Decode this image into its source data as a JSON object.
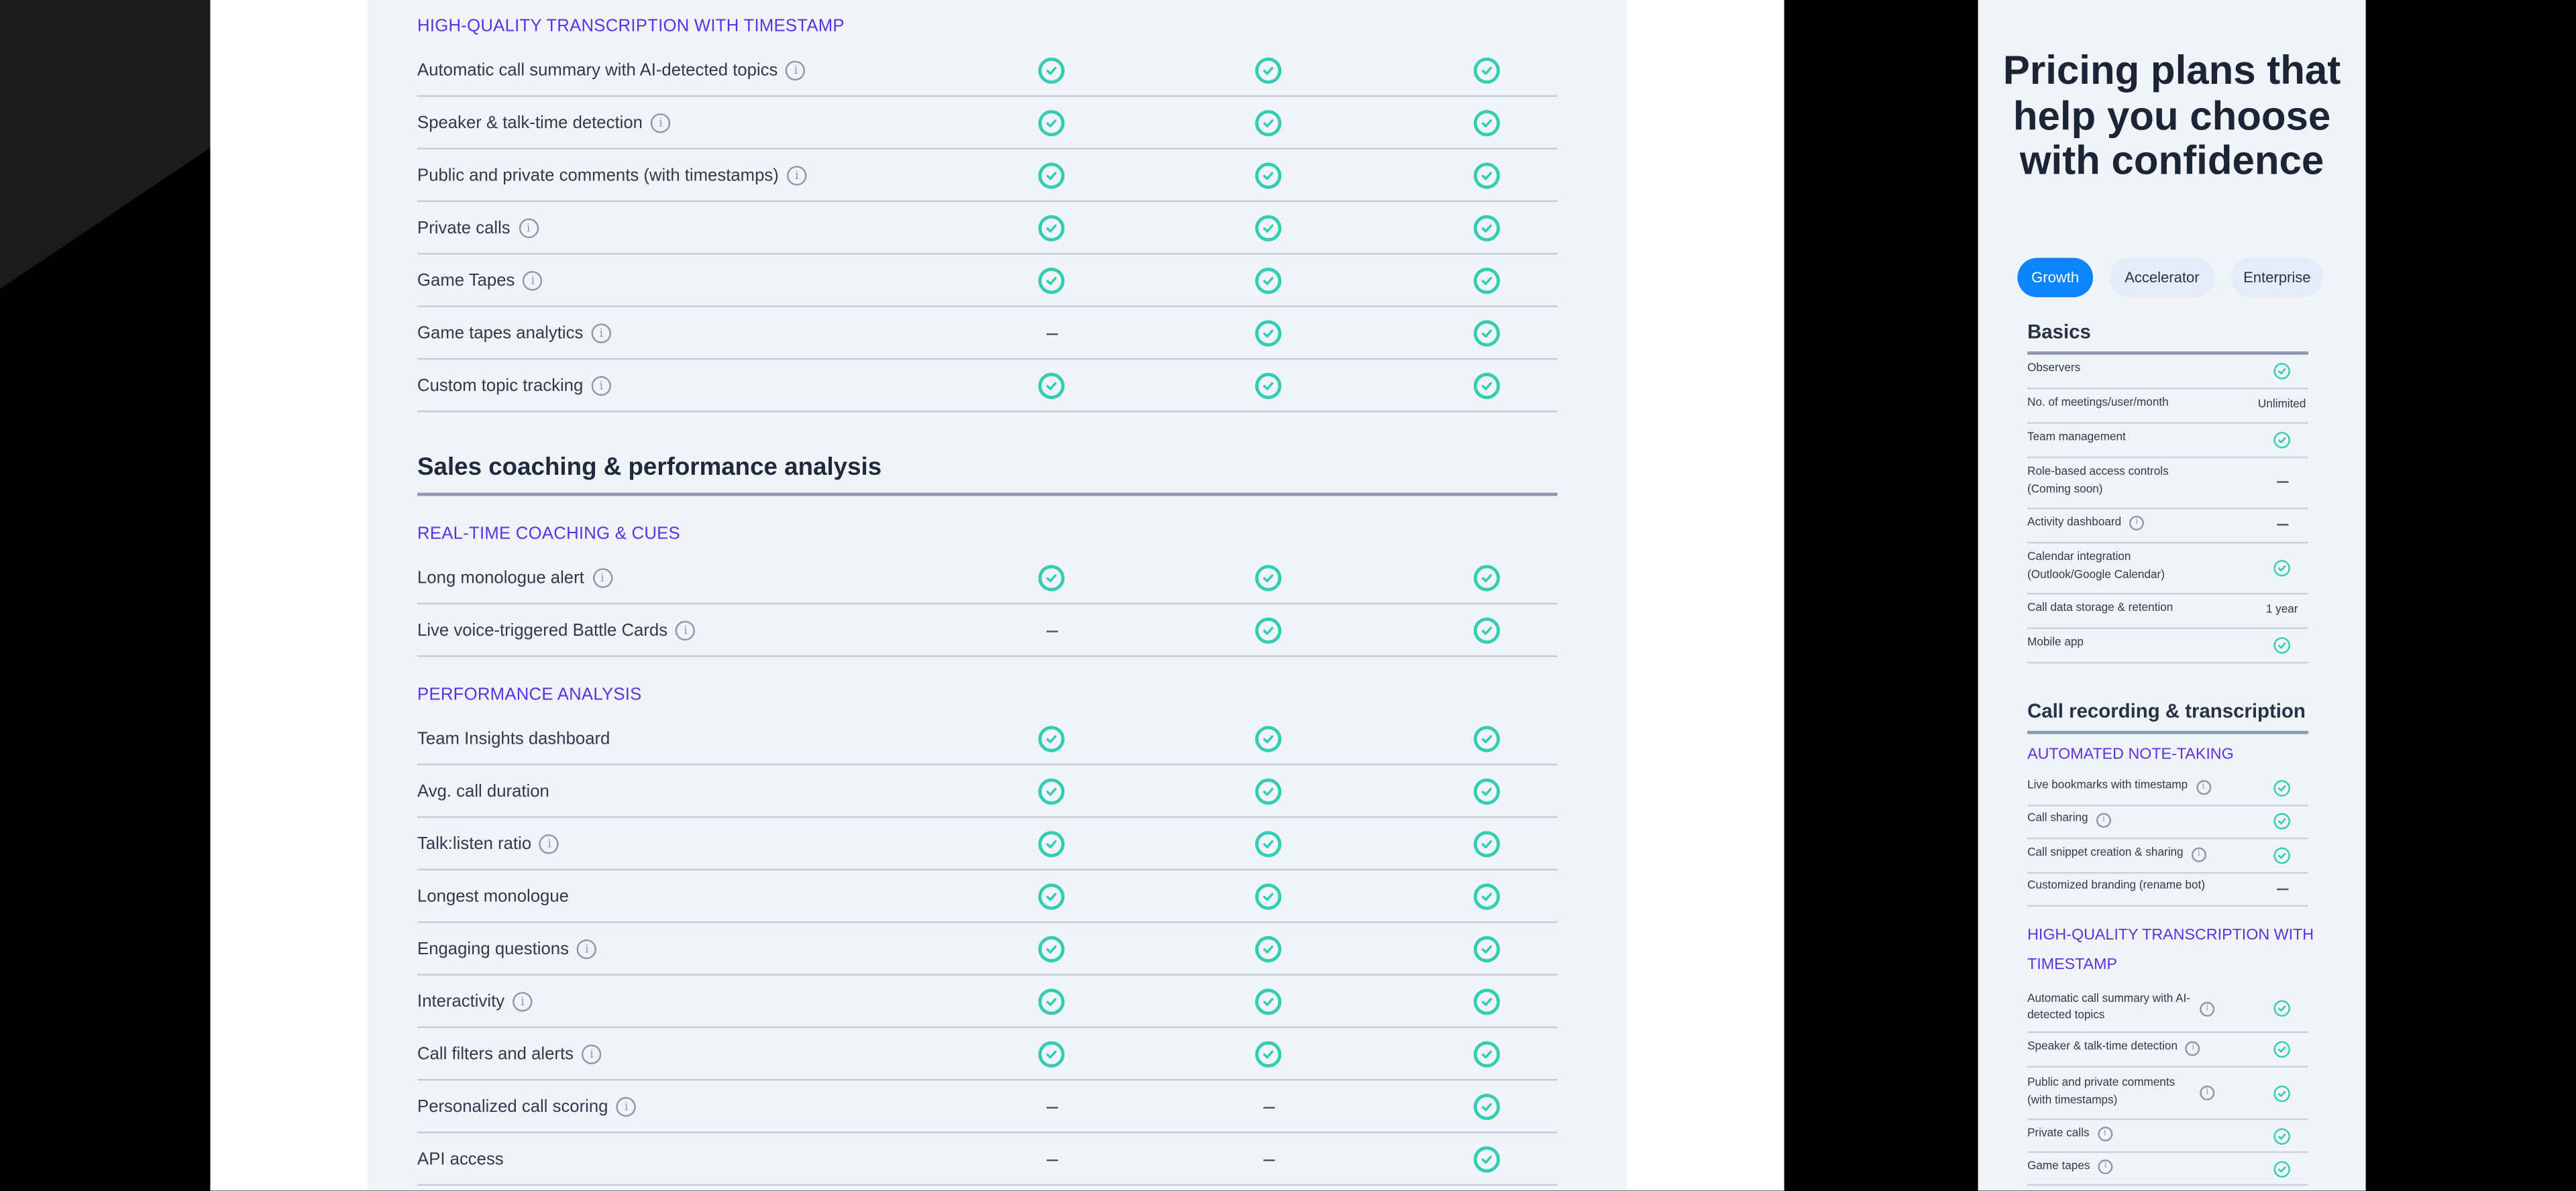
{
  "colors": {
    "accent_purple": "#5a32e6",
    "check_teal": "#33cdb3",
    "tab_active": "#0a84ff",
    "panel_bg": "#f0f4f9"
  },
  "desktop": {
    "sections": [
      {
        "category": "HIGH-QUALITY TRANSCRIPTION WITH TIMESTAMP",
        "rows": [
          {
            "label": "Automatic call summary with AI-detected topics",
            "info": true,
            "values": [
              "check",
              "check",
              "check"
            ]
          },
          {
            "label": "Speaker & talk-time detection",
            "info": true,
            "values": [
              "check",
              "check",
              "check"
            ]
          },
          {
            "label": "Public and private comments (with timestamps)",
            "info": true,
            "values": [
              "check",
              "check",
              "check"
            ]
          },
          {
            "label": "Private calls",
            "info": true,
            "values": [
              "check",
              "check",
              "check"
            ]
          },
          {
            "label": "Game Tapes",
            "info": true,
            "values": [
              "check",
              "check",
              "check"
            ]
          },
          {
            "label": "Game tapes analytics",
            "info": true,
            "values": [
              "dash",
              "check",
              "check"
            ]
          },
          {
            "label": "Custom topic tracking",
            "info": true,
            "values": [
              "check",
              "check",
              "check"
            ]
          }
        ]
      },
      {
        "heading": "Sales coaching & performance analysis",
        "category": "REAL-TIME COACHING & CUES",
        "rows": [
          {
            "label": "Long monologue alert",
            "info": true,
            "values": [
              "check",
              "check",
              "check"
            ]
          },
          {
            "label": "Live voice-triggered Battle Cards",
            "info": true,
            "values": [
              "dash",
              "check",
              "check"
            ]
          }
        ]
      },
      {
        "category": "PERFORMANCE ANALYSIS",
        "rows": [
          {
            "label": "Team Insights dashboard",
            "info": false,
            "values": [
              "check",
              "check",
              "check"
            ]
          },
          {
            "label": "Avg. call duration",
            "info": false,
            "values": [
              "check",
              "check",
              "check"
            ]
          },
          {
            "label": "Talk:listen ratio",
            "info": true,
            "values": [
              "check",
              "check",
              "check"
            ]
          },
          {
            "label": "Longest monologue",
            "info": false,
            "values": [
              "check",
              "check",
              "check"
            ]
          },
          {
            "label": "Engaging questions",
            "info": true,
            "values": [
              "check",
              "check",
              "check"
            ]
          },
          {
            "label": "Interactivity",
            "info": true,
            "values": [
              "check",
              "check",
              "check"
            ]
          },
          {
            "label": "Call filters and alerts",
            "info": true,
            "values": [
              "check",
              "check",
              "check"
            ]
          },
          {
            "label": "Personalized call scoring",
            "info": true,
            "values": [
              "dash",
              "dash",
              "check"
            ]
          },
          {
            "label": "API access",
            "info": false,
            "values": [
              "dash",
              "dash",
              "check"
            ]
          }
        ]
      }
    ]
  },
  "mobile": {
    "title": "Pricing plans that help you choose with confidence",
    "tabs": [
      {
        "label": "Growth",
        "active": true
      },
      {
        "label": "Accelerator",
        "active": false
      },
      {
        "label": "Enterprise",
        "active": false
      }
    ],
    "basics": {
      "heading": "Basics",
      "rows": [
        {
          "label": "Observers",
          "info": false,
          "value": "check"
        },
        {
          "label": "No. of meetings/user/month",
          "info": false,
          "value": "Unlimited"
        },
        {
          "label": "Team management",
          "info": false,
          "value": "check"
        },
        {
          "label": "Role-based access controls (Coming soon)",
          "info": false,
          "value": "dash"
        },
        {
          "label": "Activity dashboard",
          "info": true,
          "value": "dash"
        },
        {
          "label": "Calendar integration (Outlook/Google Calendar)",
          "info": false,
          "value": "check"
        },
        {
          "label": "Call data storage & retention",
          "info": false,
          "value": "1 year"
        },
        {
          "label": "Mobile app",
          "info": false,
          "value": "check"
        }
      ]
    },
    "recording": {
      "heading": "Call recording & transcription",
      "cat1": "AUTOMATED NOTE-TAKING",
      "rows1": [
        {
          "label": "Live bookmarks with timestamp",
          "info": true,
          "value": "check"
        },
        {
          "label": "Call sharing",
          "info": true,
          "value": "check"
        },
        {
          "label": "Call snippet creation & sharing",
          "info": true,
          "value": "check"
        },
        {
          "label": "Customized branding (rename bot)",
          "info": false,
          "value": "dash"
        }
      ],
      "cat2": "HIGH-QUALITY TRANSCRIPTION WITH TIMESTAMP",
      "rows2": [
        {
          "label": "Automatic call summary with AI-detected topics",
          "info": true,
          "value": "check"
        },
        {
          "label": "Speaker & talk-time detection",
          "info": true,
          "value": "check"
        },
        {
          "label": "Public and private comments (with timestamps)",
          "info": true,
          "value": "check"
        },
        {
          "label": "Private calls",
          "info": true,
          "value": "check"
        },
        {
          "label": "Game tapes",
          "info": true,
          "value": "check"
        }
      ]
    }
  }
}
